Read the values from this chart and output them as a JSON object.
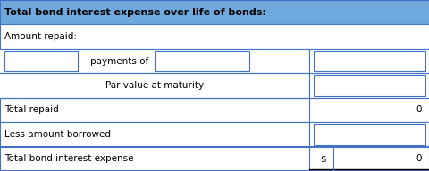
{
  "title": "Total bond interest expense over life of bonds:",
  "title_bg": "#6fa8dc",
  "title_text_color": "#000000",
  "row_labels": [
    "Amount repaid:",
    "",
    "",
    "Total repaid",
    "Less amount borrowed",
    "Total bond interest expense"
  ],
  "payments_label": "payments of",
  "par_value_label": "Par value at maturity",
  "total_repaid_value": "0",
  "total_interest_value": "0",
  "dollar_sign": "$",
  "input_box_color": "#ffffff",
  "input_box_border": "#4472c4",
  "row_bg_white": "#ffffff",
  "row_bg_light": "#ffffff",
  "border_color": "#4472c4",
  "text_color": "#000000",
  "label_color": "#c0392b",
  "figsize": [
    4.81,
    1.92
  ],
  "dpi": 100
}
